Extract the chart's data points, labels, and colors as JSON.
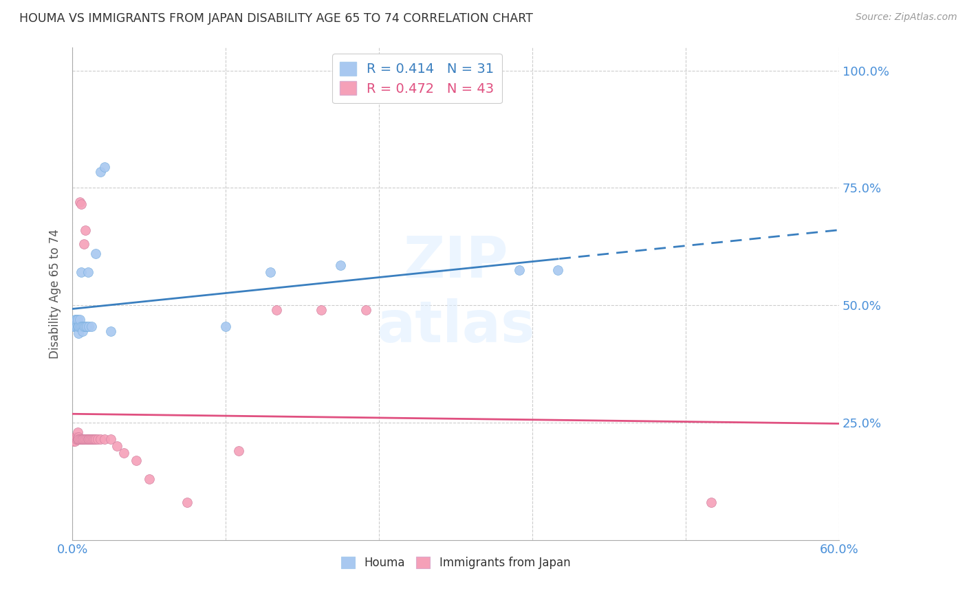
{
  "title": "HOUMA VS IMMIGRANTS FROM JAPAN DISABILITY AGE 65 TO 74 CORRELATION CHART",
  "source": "Source: ZipAtlas.com",
  "ylabel": "Disability Age 65 to 74",
  "ytick_labels": [
    "25.0%",
    "50.0%",
    "75.0%",
    "100.0%"
  ],
  "ytick_values": [
    0.25,
    0.5,
    0.75,
    1.0
  ],
  "xlim": [
    0.0,
    0.6
  ],
  "ylim": [
    0.0,
    1.05
  ],
  "houma_R": 0.414,
  "houma_N": 31,
  "japan_R": 0.472,
  "japan_N": 43,
  "houma_color": "#a8c8f0",
  "japan_color": "#f5a0b8",
  "houma_line_color": "#3a7fbf",
  "japan_line_color": "#e05080",
  "watermark": "ZIPatlas",
  "houma_x": [
    0.001,
    0.002,
    0.002,
    0.003,
    0.003,
    0.004,
    0.004,
    0.005,
    0.005,
    0.005,
    0.006,
    0.006,
    0.007,
    0.007,
    0.008,
    0.008,
    0.009,
    0.01,
    0.011,
    0.012,
    0.013,
    0.015,
    0.018,
    0.022,
    0.025,
    0.03,
    0.12,
    0.155,
    0.21,
    0.35,
    0.38
  ],
  "houma_y": [
    0.455,
    0.455,
    0.47,
    0.455,
    0.47,
    0.455,
    0.47,
    0.455,
    0.44,
    0.455,
    0.455,
    0.47,
    0.455,
    0.57,
    0.455,
    0.445,
    0.455,
    0.455,
    0.455,
    0.57,
    0.455,
    0.455,
    0.61,
    0.785,
    0.795,
    0.445,
    0.455,
    0.57,
    0.585,
    0.575,
    0.575
  ],
  "japan_x": [
    0.001,
    0.002,
    0.002,
    0.003,
    0.003,
    0.004,
    0.004,
    0.004,
    0.005,
    0.005,
    0.005,
    0.006,
    0.006,
    0.007,
    0.007,
    0.008,
    0.008,
    0.009,
    0.009,
    0.01,
    0.01,
    0.011,
    0.012,
    0.013,
    0.014,
    0.015,
    0.016,
    0.017,
    0.018,
    0.02,
    0.022,
    0.025,
    0.03,
    0.035,
    0.04,
    0.05,
    0.06,
    0.09,
    0.13,
    0.16,
    0.195,
    0.23,
    0.5
  ],
  "japan_y": [
    0.21,
    0.21,
    0.22,
    0.215,
    0.22,
    0.215,
    0.22,
    0.23,
    0.215,
    0.22,
    0.215,
    0.215,
    0.72,
    0.715,
    0.215,
    0.215,
    0.215,
    0.215,
    0.63,
    0.215,
    0.66,
    0.215,
    0.215,
    0.215,
    0.215,
    0.215,
    0.215,
    0.215,
    0.215,
    0.215,
    0.215,
    0.215,
    0.215,
    0.2,
    0.185,
    0.17,
    0.13,
    0.08,
    0.19,
    0.49,
    0.49,
    0.49,
    0.08
  ]
}
